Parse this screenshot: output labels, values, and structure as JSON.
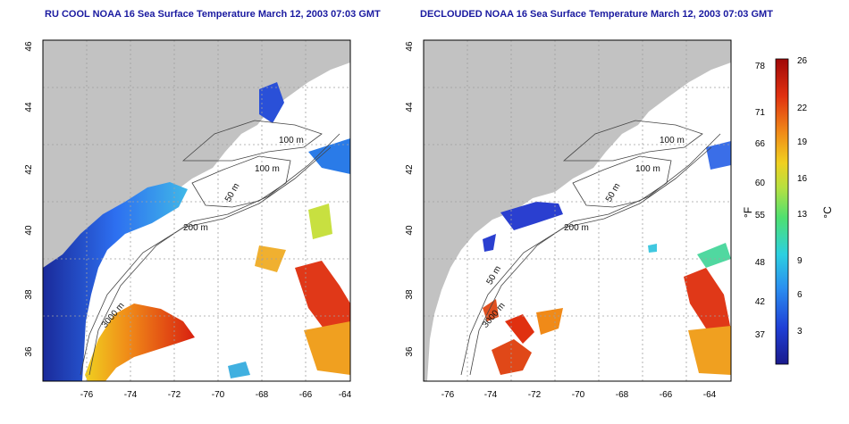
{
  "titles": {
    "left": "RU COOL NOAA 16 Sea Surface Temperature March 12, 2003 07:03 GMT",
    "right": "DECLOUDED NOAA 16 Sea Surface Temperature March 12, 2003 07:03 GMT"
  },
  "axes": {
    "x_ticks": [
      "-76",
      "-74",
      "-72",
      "-70",
      "-68",
      "-66",
      "-64"
    ],
    "y_ticks": [
      "36",
      "38",
      "40",
      "42",
      "44",
      "46"
    ]
  },
  "contour_labels": {
    "left": [
      "100 m",
      "100 m",
      "50 m",
      "200 m",
      "3000 m"
    ],
    "right": [
      "100 m",
      "100 m",
      "50 m",
      "200 m",
      "50 m",
      "3000 m"
    ]
  },
  "colorbar": {
    "unit_left": "°F",
    "unit_right": "°C",
    "f_ticks": [
      "78",
      "71",
      "66",
      "60",
      "55",
      "48",
      "42",
      "37"
    ],
    "c_ticks": [
      "26",
      "22",
      "19",
      "16",
      "13",
      "9",
      "6",
      "3"
    ]
  },
  "colors": {
    "land": "#c2c2c2",
    "no_data": "#ffffff",
    "title": "#1a1aa0",
    "grid": "#a0a0a0"
  }
}
